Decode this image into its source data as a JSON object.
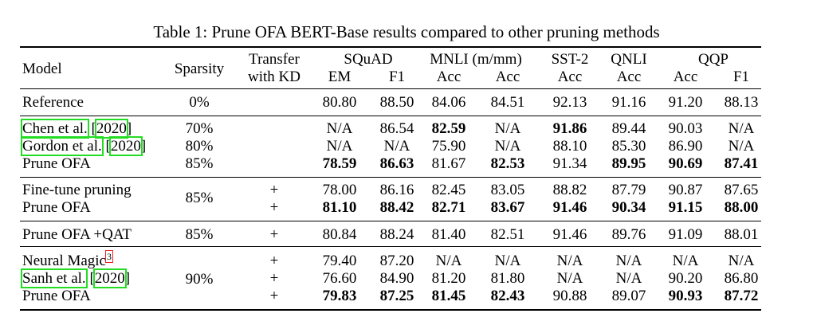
{
  "caption": "Table 1: Prune OFA BERT-Base results compared to other pruning methods",
  "headers": {
    "model": "Model",
    "sparsity": "Sparsity",
    "transfer_line1": "Transfer",
    "transfer_line2": "with KD",
    "groups": [
      "SQuAD",
      "MNLI (m/mm)",
      "SST-2",
      "QNLI",
      "QQP"
    ],
    "metrics": [
      "EM",
      "F1",
      "Acc",
      "Acc",
      "Acc",
      "Acc",
      "Acc",
      "F1"
    ]
  },
  "rows": [
    {
      "model": "Reference",
      "sparsity": "0%",
      "kd": "",
      "values": [
        "80.80",
        "88.50",
        "84.06",
        "84.51",
        "92.13",
        "91.16",
        "91.20",
        "88.13"
      ],
      "bold": []
    },
    {
      "model": "Chen et al.",
      "cite": "2020",
      "sparsity": "70%",
      "kd": "",
      "values": [
        "N/A",
        "86.54",
        "82.59",
        "N/A",
        "91.86",
        "89.44",
        "90.03",
        "N/A"
      ],
      "bold": [
        2,
        4
      ]
    },
    {
      "model": "Gordon et al.",
      "cite": "2020",
      "sparsity": "80%",
      "kd": "",
      "values": [
        "N/A",
        "N/A",
        "75.90",
        "N/A",
        "88.10",
        "85.30",
        "86.90",
        "N/A"
      ],
      "bold": []
    },
    {
      "model": "Prune OFA",
      "sparsity": "85%",
      "kd": "",
      "values": [
        "78.59",
        "86.63",
        "81.67",
        "82.53",
        "91.34",
        "89.95",
        "90.69",
        "87.41"
      ],
      "bold": [
        0,
        1,
        3,
        5,
        6,
        7
      ]
    },
    {
      "model": "Fine-tune pruning",
      "sparsity": "",
      "kd": "+",
      "values": [
        "78.00",
        "86.16",
        "82.45",
        "83.05",
        "88.82",
        "87.79",
        "90.87",
        "87.65"
      ],
      "bold": []
    },
    {
      "model": "Prune OFA",
      "sparsity": "",
      "kd": "+",
      "values": [
        "81.10",
        "88.42",
        "82.71",
        "83.67",
        "91.46",
        "90.34",
        "91.15",
        "88.00"
      ],
      "bold": [
        0,
        1,
        2,
        3,
        4,
        5,
        6,
        7
      ]
    },
    {
      "model": "Prune OFA +QAT",
      "sparsity": "85%",
      "kd": "+",
      "values": [
        "80.84",
        "88.24",
        "81.40",
        "82.51",
        "91.46",
        "89.76",
        "91.09",
        "88.01"
      ],
      "bold": []
    },
    {
      "model": "Neural Magic",
      "footnote": "3",
      "sparsity": "",
      "kd": "+",
      "values": [
        "79.40",
        "87.20",
        "N/A",
        "N/A",
        "N/A",
        "N/A",
        "N/A",
        "N/A"
      ],
      "bold": []
    },
    {
      "model": "Sanh et al.",
      "cite": "2020",
      "sparsity": "",
      "kd": "+",
      "values": [
        "76.60",
        "84.90",
        "81.20",
        "81.80",
        "N/A",
        "N/A",
        "90.20",
        "86.80"
      ],
      "bold": []
    },
    {
      "model": "Prune OFA",
      "sparsity": "",
      "kd": "+",
      "values": [
        "79.83",
        "87.25",
        "81.45",
        "82.43",
        "90.88",
        "89.07",
        "90.93",
        "87.72"
      ],
      "bold": [
        0,
        1,
        2,
        3,
        6,
        7
      ]
    }
  ],
  "merged_sparsity": {
    "fine_tune_group": "85%",
    "neural_magic_group": "90%"
  }
}
